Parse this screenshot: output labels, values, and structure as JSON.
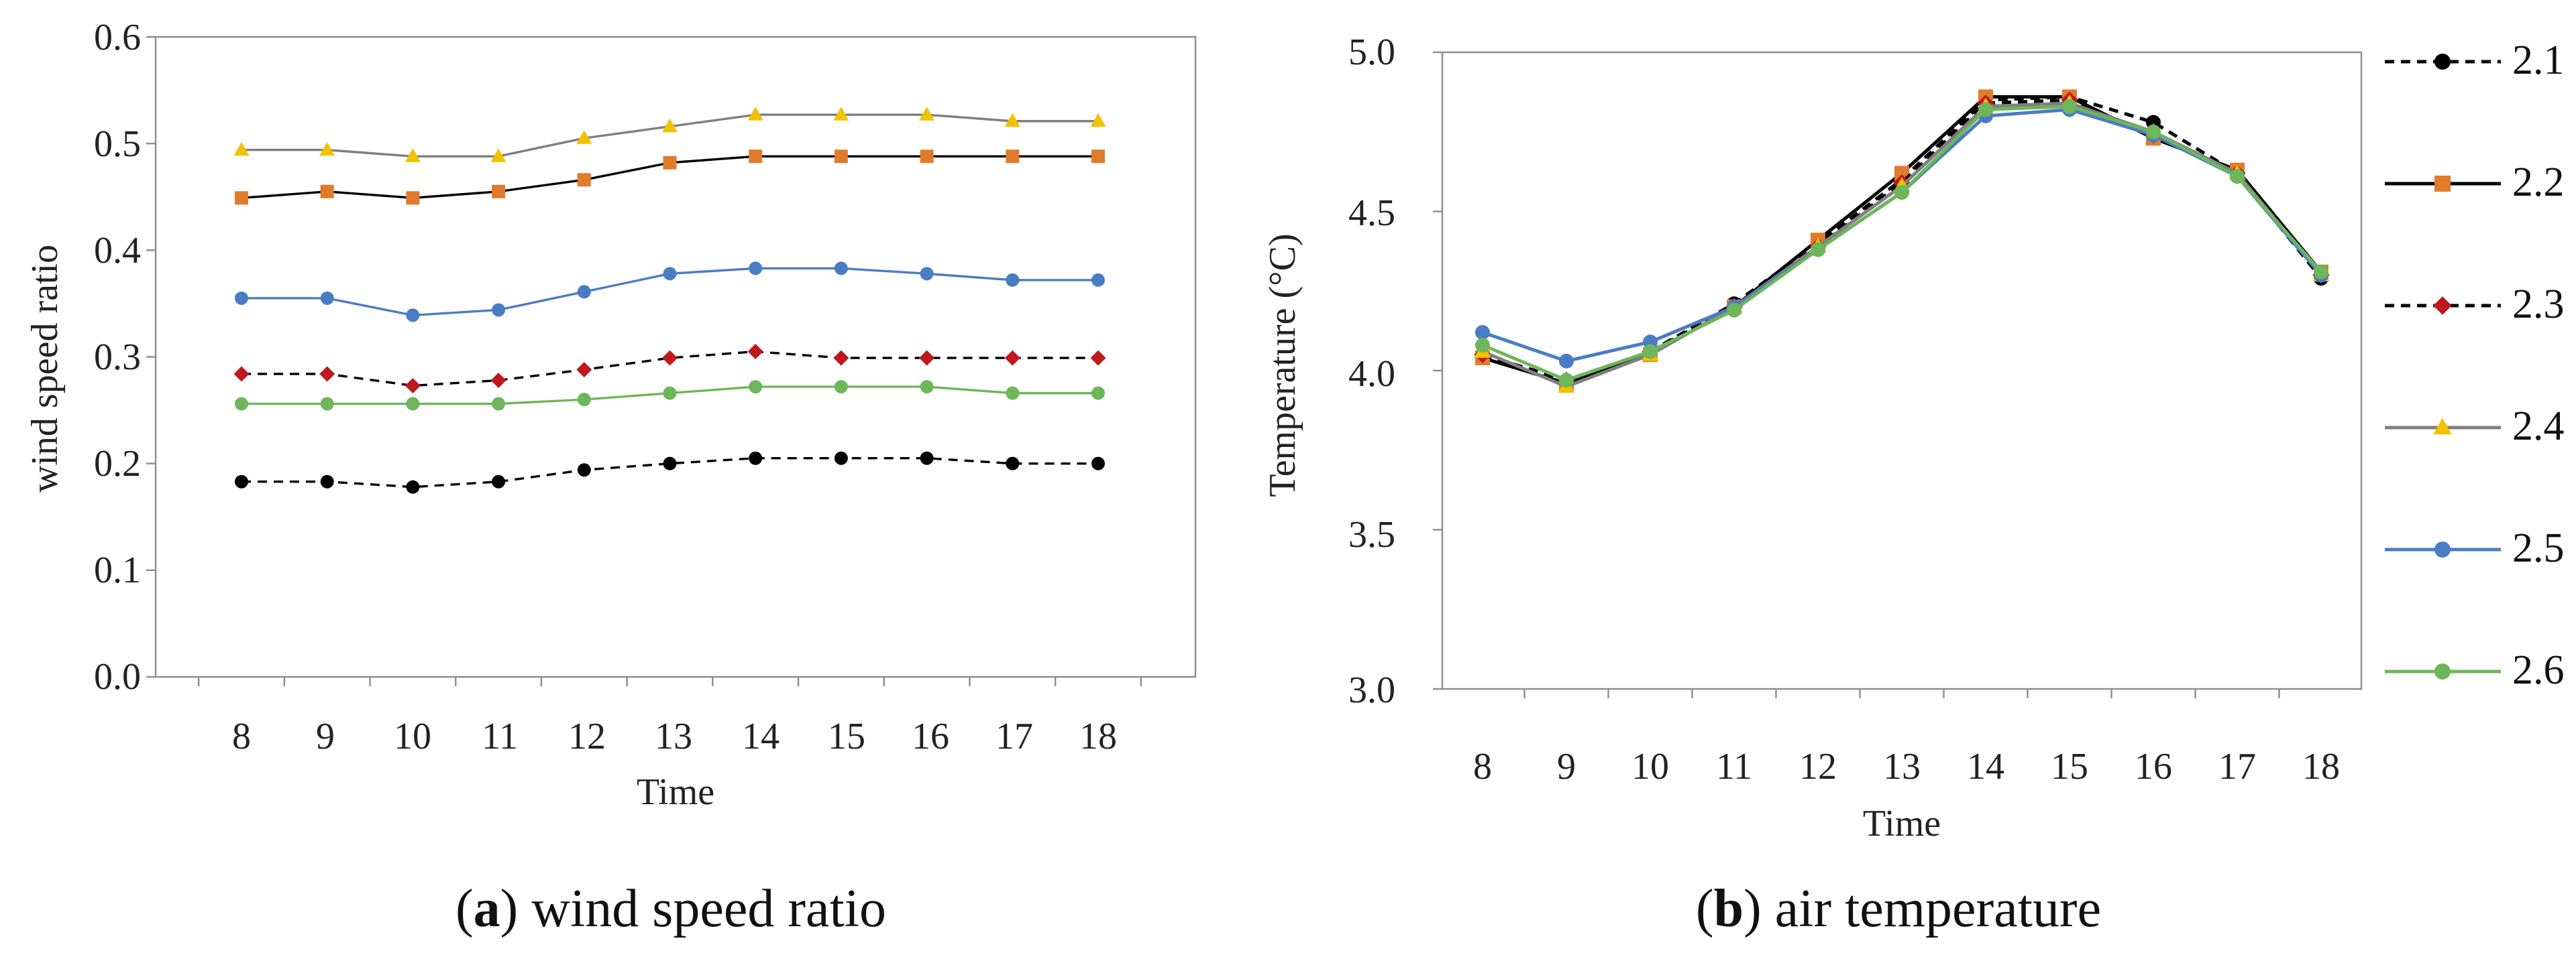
{
  "chart_data": [
    {
      "type": "line",
      "panel": "a",
      "caption_letter": "a",
      "caption_text": " wind speed ratio",
      "title": "",
      "xlabel": "Time",
      "ylabel": "wind speed ratio",
      "x": [
        8,
        9,
        10,
        11,
        12,
        13,
        14,
        15,
        16,
        17,
        18
      ],
      "xticks": [
        "8",
        "9",
        "10",
        "11",
        "12",
        "13",
        "14",
        "15",
        "16",
        "17",
        "18"
      ],
      "ylim": [
        0.0,
        0.6
      ],
      "yticks": [
        "0.0",
        "0.1",
        "0.2",
        "0.3",
        "0.4",
        "0.5",
        "0.6"
      ],
      "grid": false,
      "series": [
        {
          "name": "2.1",
          "values": [
            0.183,
            0.183,
            0.178,
            0.183,
            0.194,
            0.2,
            0.205,
            0.205,
            0.205,
            0.2,
            0.2
          ]
        },
        {
          "name": "2.2",
          "values": [
            0.449,
            0.455,
            0.449,
            0.455,
            0.466,
            0.482,
            0.488,
            0.488,
            0.488,
            0.488,
            0.488
          ]
        },
        {
          "name": "2.3",
          "values": [
            0.284,
            0.284,
            0.273,
            0.278,
            0.288,
            0.299,
            0.305,
            0.299,
            0.299,
            0.299,
            0.299
          ]
        },
        {
          "name": "2.4",
          "values": [
            0.494,
            0.494,
            0.488,
            0.488,
            0.505,
            0.516,
            0.527,
            0.527,
            0.527,
            0.521,
            0.521
          ]
        },
        {
          "name": "2.5",
          "values": [
            0.355,
            0.355,
            0.339,
            0.344,
            0.361,
            0.378,
            0.383,
            0.383,
            0.378,
            0.372,
            0.372
          ]
        },
        {
          "name": "2.6",
          "values": [
            0.256,
            0.256,
            0.256,
            0.256,
            0.26,
            0.266,
            0.272,
            0.272,
            0.272,
            0.266,
            0.266
          ]
        }
      ]
    },
    {
      "type": "line",
      "panel": "b",
      "caption_letter": "b",
      "caption_text": " air temperature",
      "title": "",
      "xlabel": "Time",
      "ylabel": "Temperature (°C)",
      "x": [
        8,
        9,
        10,
        11,
        12,
        13,
        14,
        15,
        16,
        17,
        18
      ],
      "xticks": [
        "8",
        "9",
        "10",
        "11",
        "12",
        "13",
        "14",
        "15",
        "16",
        "17",
        "18"
      ],
      "ylim": [
        3.0,
        5.0
      ],
      "yticks": [
        "3.0",
        "3.5",
        "4.0",
        "4.5",
        "5.0"
      ],
      "grid": false,
      "legend_position": "right",
      "series": [
        {
          "name": "2.1",
          "values": [
            4.05,
            3.96,
            4.06,
            4.21,
            4.4,
            4.6,
            4.85,
            4.86,
            4.78,
            4.62,
            4.29
          ]
        },
        {
          "name": "2.2",
          "values": [
            4.04,
            3.96,
            4.05,
            4.2,
            4.41,
            4.62,
            4.86,
            4.86,
            4.73,
            4.63,
            4.31
          ]
        },
        {
          "name": "2.3",
          "values": [
            4.05,
            3.97,
            4.06,
            4.2,
            4.39,
            4.59,
            4.84,
            4.85,
            4.74,
            4.62,
            4.3
          ]
        },
        {
          "name": "2.4",
          "values": [
            4.06,
            3.95,
            4.05,
            4.2,
            4.39,
            4.58,
            4.83,
            4.84,
            4.75,
            4.62,
            4.3
          ]
        },
        {
          "name": "2.5",
          "values": [
            4.12,
            4.03,
            4.09,
            4.2,
            4.38,
            4.56,
            4.8,
            4.82,
            4.74,
            4.61,
            4.3
          ]
        },
        {
          "name": "2.6",
          "values": [
            4.08,
            3.97,
            4.06,
            4.19,
            4.38,
            4.56,
            4.82,
            4.83,
            4.75,
            4.61,
            4.31
          ]
        }
      ]
    }
  ],
  "series_styles": [
    {
      "name": "2.1",
      "color": "#000000",
      "dash": "dashed",
      "marker": "circle",
      "marker_color": "#000000"
    },
    {
      "name": "2.2",
      "color": "#000000",
      "dash": "solid",
      "marker": "square",
      "marker_color": "#e07b2c"
    },
    {
      "name": "2.3",
      "color": "#000000",
      "dash": "dashed",
      "marker": "diamond",
      "marker_color": "#c0181f"
    },
    {
      "name": "2.4",
      "color": "#7f7f7f",
      "dash": "solid",
      "marker": "triangle",
      "marker_color": "#f2c200"
    },
    {
      "name": "2.5",
      "color": "#4a7cc4",
      "dash": "solid",
      "marker": "circle",
      "marker_color": "#4a7cc4"
    },
    {
      "name": "2.6",
      "color": "#6db65a",
      "dash": "solid",
      "marker": "circle",
      "marker_color": "#6db65a"
    }
  ]
}
